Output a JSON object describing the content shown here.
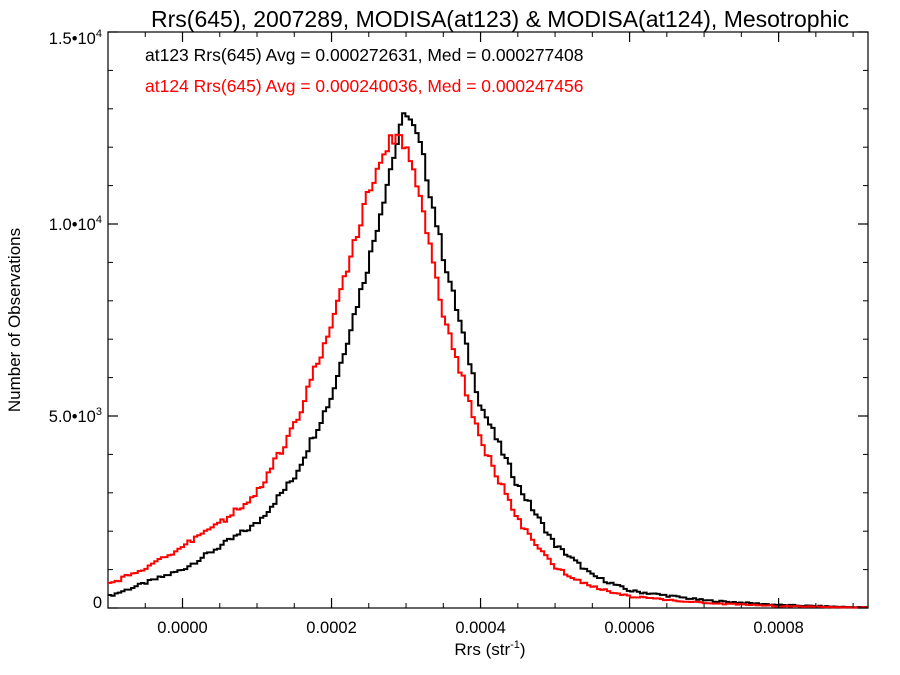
{
  "chart_data": {
    "type": "line",
    "title": "Rrs(645), 2007289, MODISA(at123) & MODISA(at124), Mesotrophic",
    "xlabel": "Rrs (str",
    "xlabel_sup": "-1",
    "xlabel_close": ")",
    "ylabel": "Number of Observations",
    "xlim": [
      -0.0001,
      0.00092
    ],
    "ylim": [
      0,
      15000
    ],
    "grid": false,
    "legend": "none",
    "x_ticks": [
      {
        "value": 0.0,
        "label": "0.0000"
      },
      {
        "value": 0.0002,
        "label": "0.0002"
      },
      {
        "value": 0.0004,
        "label": "0.0004"
      },
      {
        "value": 0.0006,
        "label": "0.0006"
      },
      {
        "value": 0.0008,
        "label": "0.0008"
      }
    ],
    "y_ticks": [
      {
        "value": 0,
        "mantissa": "0",
        "exp": ""
      },
      {
        "value": 5000,
        "mantissa": "5.0•10",
        "exp": "3"
      },
      {
        "value": 10000,
        "mantissa": "1.0•10",
        "exp": "4"
      },
      {
        "value": 15000,
        "mantissa": "1.5•10",
        "exp": "4"
      }
    ],
    "annotations": [
      {
        "text": "at123 Rrs(645) Avg = 0.000272631, Med = 0.000277408",
        "color": "#000000"
      },
      {
        "text": "at124 Rrs(645) Avg = 0.000240036, Med = 0.000247456",
        "color": "#ff0000"
      }
    ],
    "series": [
      {
        "color": "#000000",
        "x": [
          -0.0001,
          -5e-05,
          0.0,
          5e-05,
          0.0001,
          0.00015,
          0.0002,
          0.00025,
          0.00028,
          0.0003,
          0.00032,
          0.00035,
          0.0004,
          0.00045,
          0.0005,
          0.00055,
          0.0006,
          0.0007,
          0.0008,
          0.0009
        ],
        "values": [
          300,
          650,
          1000,
          1600,
          2200,
          3400,
          5500,
          9000,
          11500,
          13000,
          12000,
          9200,
          5300,
          3200,
          1650,
          850,
          450,
          200,
          80,
          20
        ]
      },
      {
        "color": "#ff0000",
        "x": [
          -0.0001,
          -5e-05,
          0.0,
          5e-05,
          0.0001,
          0.00015,
          0.0002,
          0.00022,
          0.00025,
          0.00028,
          0.0003,
          0.00032,
          0.00035,
          0.0004,
          0.00045,
          0.0005,
          0.00055,
          0.0006,
          0.0007,
          0.0008,
          0.0009
        ],
        "values": [
          600,
          1050,
          1600,
          2200,
          3000,
          4700,
          7400,
          8800,
          10800,
          12300,
          12100,
          10500,
          7700,
          4400,
          2300,
          1050,
          550,
          300,
          130,
          50,
          15
        ]
      }
    ]
  }
}
